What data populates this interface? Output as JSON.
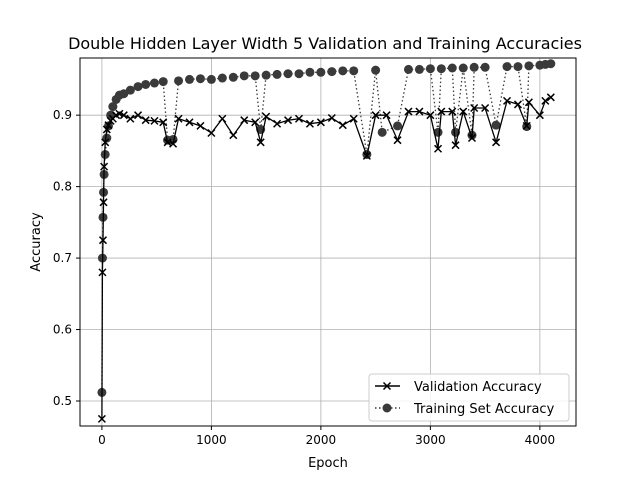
{
  "chart_data": {
    "type": "line",
    "title": "Double  Hidden Layer Width  5  Validation and Training Accuracies",
    "xlabel": "Epoch",
    "ylabel": "Accuracy",
    "xlim": [
      -200,
      4330
    ],
    "ylim": [
      0.465,
      0.98
    ],
    "xticks": [
      0,
      1000,
      2000,
      3000,
      4000
    ],
    "xtick_labels": [
      "0",
      "1000",
      "2000",
      "3000",
      "4000"
    ],
    "yticks": [
      0.5,
      0.6,
      0.7,
      0.8,
      0.9
    ],
    "ytick_labels": [
      "0.5",
      "0.6",
      "0.7",
      "0.8",
      "0.9"
    ],
    "grid": true,
    "legend_position": "lower-right",
    "series": [
      {
        "name": "Validation Accuracy",
        "marker": "x",
        "linestyle": "solid",
        "color": "#000000",
        "x": [
          0,
          5,
          10,
          15,
          20,
          30,
          45,
          60,
          80,
          100,
          130,
          160,
          200,
          260,
          330,
          400,
          480,
          560,
          600,
          650,
          700,
          800,
          900,
          1000,
          1100,
          1200,
          1300,
          1400,
          1450,
          1500,
          1600,
          1700,
          1800,
          1900,
          2000,
          2100,
          2200,
          2300,
          2420,
          2500,
          2600,
          2700,
          2800,
          2900,
          3000,
          3070,
          3100,
          3200,
          3230,
          3300,
          3380,
          3400,
          3500,
          3600,
          3700,
          3800,
          3880,
          3900,
          4000,
          4050,
          4100
        ],
        "y": [
          0.475,
          0.68,
          0.725,
          0.778,
          0.828,
          0.862,
          0.88,
          0.886,
          0.892,
          0.895,
          0.9,
          0.902,
          0.9,
          0.895,
          0.9,
          0.893,
          0.892,
          0.89,
          0.862,
          0.86,
          0.895,
          0.89,
          0.885,
          0.875,
          0.895,
          0.872,
          0.893,
          0.89,
          0.862,
          0.898,
          0.888,
          0.893,
          0.895,
          0.888,
          0.89,
          0.896,
          0.886,
          0.895,
          0.843,
          0.9,
          0.9,
          0.865,
          0.905,
          0.905,
          0.9,
          0.853,
          0.905,
          0.905,
          0.858,
          0.905,
          0.868,
          0.91,
          0.91,
          0.862,
          0.92,
          0.915,
          0.885,
          0.918,
          0.9,
          0.92,
          0.925
        ]
      },
      {
        "name": "Training Set Accuracy",
        "marker": "o",
        "linestyle": "dotted",
        "color": "#3a3a3a",
        "x": [
          0,
          5,
          10,
          15,
          20,
          30,
          45,
          60,
          80,
          100,
          130,
          160,
          200,
          260,
          330,
          400,
          480,
          560,
          600,
          650,
          700,
          800,
          900,
          1000,
          1100,
          1200,
          1300,
          1400,
          1450,
          1500,
          1600,
          1700,
          1800,
          1900,
          2000,
          2100,
          2200,
          2300,
          2420,
          2500,
          2560,
          2700,
          2800,
          2900,
          3000,
          3070,
          3100,
          3200,
          3230,
          3300,
          3380,
          3400,
          3500,
          3600,
          3700,
          3800,
          3880,
          3900,
          4000,
          4050,
          4100
        ],
        "y": [
          0.512,
          0.7,
          0.757,
          0.792,
          0.817,
          0.845,
          0.868,
          0.885,
          0.9,
          0.912,
          0.922,
          0.928,
          0.93,
          0.935,
          0.94,
          0.943,
          0.945,
          0.947,
          0.865,
          0.866,
          0.948,
          0.95,
          0.951,
          0.95,
          0.952,
          0.953,
          0.955,
          0.955,
          0.88,
          0.956,
          0.957,
          0.958,
          0.958,
          0.96,
          0.96,
          0.961,
          0.962,
          0.962,
          0.845,
          0.963,
          0.876,
          0.885,
          0.964,
          0.964,
          0.965,
          0.876,
          0.965,
          0.966,
          0.876,
          0.966,
          0.872,
          0.967,
          0.967,
          0.886,
          0.968,
          0.968,
          0.884,
          0.969,
          0.97,
          0.971,
          0.972
        ]
      }
    ]
  }
}
